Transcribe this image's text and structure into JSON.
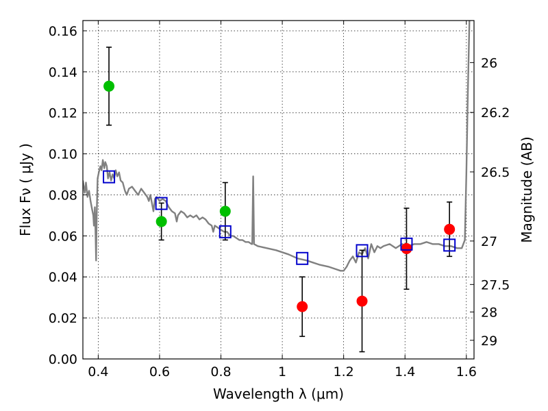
{
  "chart_data": {
    "type": "scatter",
    "xlabel": "Wavelength  λ (μm)",
    "ylabel": "Flux  Fν  ( μJy )",
    "ylabel_right": "Magnitude (AB)",
    "xlim": [
      0.35,
      1.625
    ],
    "ylim": [
      0.0,
      0.165
    ],
    "grid": true,
    "x_ticks": [
      0.4,
      0.6,
      0.8,
      1.0,
      1.2,
      1.4,
      1.6
    ],
    "x_tick_labels": [
      "0.4",
      "0.6",
      "0.8",
      "1",
      "1.2",
      "1.4",
      "1.6"
    ],
    "y_ticks": [
      0.0,
      0.02,
      0.04,
      0.06,
      0.08,
      0.1,
      0.12,
      0.14,
      0.16
    ],
    "y_tick_labels": [
      "0.00",
      "0.02",
      "0.04",
      "0.06",
      "0.08",
      "0.10",
      "0.12",
      "0.14",
      "0.16"
    ],
    "right_ticks": [
      {
        "label": "26",
        "flux": 0.1445
      },
      {
        "label": "26.2",
        "flux": 0.1202
      },
      {
        "label": "26.5",
        "flux": 0.0912
      },
      {
        "label": "27",
        "flux": 0.0575
      },
      {
        "label": "27.5",
        "flux": 0.0363
      },
      {
        "label": "28",
        "flux": 0.0229
      },
      {
        "label": "29",
        "flux": 0.0091
      }
    ],
    "colors": {
      "green": "#00bf00",
      "red": "#ff0000",
      "model_box": "#0000cc",
      "sed": "#808080",
      "errorbar": "#000000"
    },
    "series": [
      {
        "marker": "circle",
        "color": "green",
        "points": [
          {
            "x": 0.435,
            "y": 0.133,
            "err": [
              0.114,
              0.152
            ]
          },
          {
            "x": 0.606,
            "y": 0.067,
            "err": [
              0.058,
              0.076
            ]
          },
          {
            "x": 0.814,
            "y": 0.072,
            "err": [
              0.058,
              0.086
            ]
          }
        ]
      },
      {
        "marker": "circle",
        "color": "red",
        "points": [
          {
            "x": 1.065,
            "y": 0.0255,
            "err": [
              0.011,
              0.04
            ]
          },
          {
            "x": 1.26,
            "y": 0.0282,
            "err": [
              0.0035,
              0.053
            ]
          },
          {
            "x": 1.405,
            "y": 0.0538,
            "err": [
              0.034,
              0.0735
            ]
          },
          {
            "x": 1.545,
            "y": 0.0632,
            "err": [
              0.05,
              0.0765
            ]
          }
        ]
      },
      {
        "marker": "square",
        "color": "model_box",
        "points": [
          {
            "x": 0.435,
            "y": 0.0888
          },
          {
            "x": 0.606,
            "y": 0.0758
          },
          {
            "x": 0.814,
            "y": 0.062
          },
          {
            "x": 1.065,
            "y": 0.049
          },
          {
            "x": 1.26,
            "y": 0.0528
          },
          {
            "x": 1.405,
            "y": 0.056
          },
          {
            "x": 1.545,
            "y": 0.0555
          }
        ]
      }
    ],
    "sed_line": {
      "color": "sed",
      "points": [
        [
          0.35,
          0.087
        ],
        [
          0.356,
          0.081
        ],
        [
          0.36,
          0.086
        ],
        [
          0.365,
          0.079
        ],
        [
          0.37,
          0.082
        ],
        [
          0.375,
          0.077
        ],
        [
          0.38,
          0.073
        ],
        [
          0.384,
          0.07
        ],
        [
          0.386,
          0.065
        ],
        [
          0.389,
          0.074
        ],
        [
          0.391,
          0.062
        ],
        [
          0.393,
          0.048
        ],
        [
          0.395,
          0.071
        ],
        [
          0.398,
          0.088
        ],
        [
          0.402,
          0.091
        ],
        [
          0.407,
          0.094
        ],
        [
          0.411,
          0.092
        ],
        [
          0.415,
          0.097
        ],
        [
          0.42,
          0.093
        ],
        [
          0.423,
          0.096
        ],
        [
          0.428,
          0.094
        ],
        [
          0.432,
          0.088
        ],
        [
          0.437,
          0.091
        ],
        [
          0.442,
          0.087
        ],
        [
          0.447,
          0.09
        ],
        [
          0.452,
          0.088
        ],
        [
          0.457,
          0.092
        ],
        [
          0.462,
          0.089
        ],
        [
          0.468,
          0.091
        ],
        [
          0.473,
          0.087
        ],
        [
          0.48,
          0.086
        ],
        [
          0.487,
          0.082
        ],
        [
          0.493,
          0.08
        ],
        [
          0.5,
          0.083
        ],
        [
          0.51,
          0.084
        ],
        [
          0.52,
          0.082
        ],
        [
          0.53,
          0.08
        ],
        [
          0.54,
          0.083
        ],
        [
          0.55,
          0.081
        ],
        [
          0.56,
          0.079
        ],
        [
          0.565,
          0.077
        ],
        [
          0.57,
          0.08
        ],
        [
          0.575,
          0.076
        ],
        [
          0.58,
          0.072
        ],
        [
          0.585,
          0.078
        ],
        [
          0.59,
          0.079
        ],
        [
          0.6,
          0.077
        ],
        [
          0.61,
          0.078
        ],
        [
          0.62,
          0.077
        ],
        [
          0.63,
          0.074
        ],
        [
          0.64,
          0.072
        ],
        [
          0.65,
          0.071
        ],
        [
          0.656,
          0.067
        ],
        [
          0.66,
          0.07
        ],
        [
          0.67,
          0.072
        ],
        [
          0.68,
          0.071
        ],
        [
          0.69,
          0.069
        ],
        [
          0.7,
          0.07
        ],
        [
          0.71,
          0.069
        ],
        [
          0.72,
          0.07
        ],
        [
          0.73,
          0.068
        ],
        [
          0.74,
          0.069
        ],
        [
          0.75,
          0.068
        ],
        [
          0.76,
          0.066
        ],
        [
          0.77,
          0.065
        ],
        [
          0.775,
          0.062
        ],
        [
          0.78,
          0.065
        ],
        [
          0.79,
          0.064
        ],
        [
          0.8,
          0.063
        ],
        [
          0.81,
          0.062
        ],
        [
          0.82,
          0.062
        ],
        [
          0.83,
          0.06
        ],
        [
          0.84,
          0.06
        ],
        [
          0.85,
          0.059
        ],
        [
          0.86,
          0.058
        ],
        [
          0.87,
          0.058
        ],
        [
          0.88,
          0.057
        ],
        [
          0.89,
          0.057
        ],
        [
          0.9,
          0.056
        ],
        [
          0.902,
          0.056
        ],
        [
          0.905,
          0.089
        ],
        [
          0.908,
          0.056
        ],
        [
          0.92,
          0.055
        ],
        [
          0.95,
          0.054
        ],
        [
          0.98,
          0.053
        ],
        [
          1.0,
          0.052
        ],
        [
          1.02,
          0.051
        ],
        [
          1.05,
          0.049
        ],
        [
          1.08,
          0.048
        ],
        [
          1.1,
          0.047
        ],
        [
          1.12,
          0.046
        ],
        [
          1.15,
          0.045
        ],
        [
          1.17,
          0.044
        ],
        [
          1.19,
          0.043
        ],
        [
          1.2,
          0.043
        ],
        [
          1.21,
          0.045
        ],
        [
          1.22,
          0.048
        ],
        [
          1.23,
          0.05
        ],
        [
          1.24,
          0.047
        ],
        [
          1.25,
          0.052
        ],
        [
          1.26,
          0.051
        ],
        [
          1.27,
          0.054
        ],
        [
          1.28,
          0.049
        ],
        [
          1.29,
          0.056
        ],
        [
          1.3,
          0.052
        ],
        [
          1.31,
          0.055
        ],
        [
          1.32,
          0.054
        ],
        [
          1.33,
          0.055
        ],
        [
          1.35,
          0.056
        ],
        [
          1.37,
          0.054
        ],
        [
          1.39,
          0.056
        ],
        [
          1.41,
          0.055
        ],
        [
          1.43,
          0.056
        ],
        [
          1.45,
          0.056
        ],
        [
          1.47,
          0.057
        ],
        [
          1.49,
          0.056
        ],
        [
          1.51,
          0.056
        ],
        [
          1.53,
          0.055
        ],
        [
          1.55,
          0.055
        ],
        [
          1.57,
          0.054
        ],
        [
          1.585,
          0.054
        ],
        [
          1.595,
          0.058
        ],
        [
          1.6,
          0.09
        ],
        [
          1.605,
          0.13
        ],
        [
          1.61,
          0.165
        ]
      ]
    }
  }
}
